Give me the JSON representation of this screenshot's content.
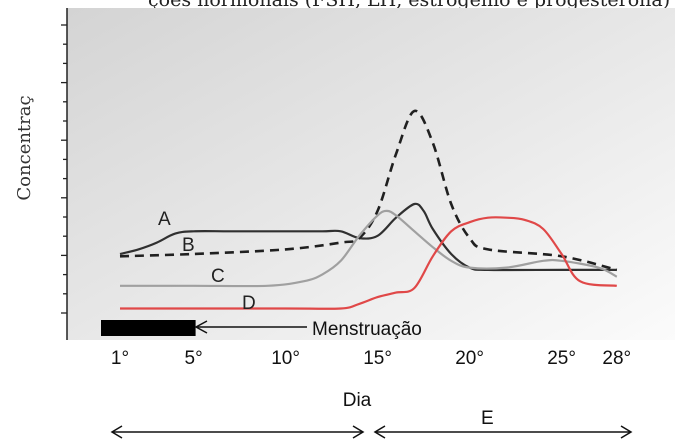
{
  "chart_data": {
    "type": "line",
    "title": "ções hormonais (FSH, LH, estrogênio e progesterona)",
    "ylabel": "Concentraç",
    "xlabel": "Dia",
    "x_ticks": [
      "1°",
      "5°",
      "10°",
      "15°",
      "20°",
      "25°",
      "28°"
    ],
    "x_tick_days": [
      1,
      5,
      10,
      15,
      20,
      25,
      28
    ],
    "xlim": [
      0,
      30
    ],
    "ylim": [
      0,
      10
    ],
    "grid": false,
    "series": [
      {
        "name": "A",
        "color": "#303030",
        "dash": false,
        "points": [
          [
            1,
            2.6
          ],
          [
            2,
            2.8
          ],
          [
            3,
            3.1
          ],
          [
            4,
            3.5
          ],
          [
            5,
            3.6
          ],
          [
            7,
            3.6
          ],
          [
            10,
            3.6
          ],
          [
            12,
            3.6
          ],
          [
            13,
            3.6
          ],
          [
            14,
            3.3
          ],
          [
            15,
            3.4
          ],
          [
            16,
            4.2
          ],
          [
            17,
            4.8
          ],
          [
            17.5,
            4.5
          ],
          [
            18,
            3.7
          ],
          [
            19,
            2.6
          ],
          [
            20,
            2.0
          ],
          [
            21,
            1.9
          ],
          [
            25,
            1.9
          ],
          [
            28,
            1.9
          ]
        ]
      },
      {
        "name": "B",
        "color": "#202020",
        "dash": true,
        "points": [
          [
            1,
            2.5
          ],
          [
            5,
            2.6
          ],
          [
            10,
            2.8
          ],
          [
            13,
            3.1
          ],
          [
            14,
            3.3
          ],
          [
            15,
            4.5
          ],
          [
            16,
            7.0
          ],
          [
            17,
            8.9
          ],
          [
            18,
            7.5
          ],
          [
            19,
            4.8
          ],
          [
            20,
            3.3
          ],
          [
            21,
            2.8
          ],
          [
            25,
            2.5
          ],
          [
            28,
            1.9
          ]
        ]
      },
      {
        "name": "C",
        "color": "#a0a0a0",
        "dash": false,
        "points": [
          [
            1,
            1.2
          ],
          [
            5,
            1.2
          ],
          [
            9,
            1.2
          ],
          [
            11,
            1.4
          ],
          [
            12,
            1.7
          ],
          [
            13,
            2.3
          ],
          [
            14,
            3.4
          ],
          [
            15,
            4.3
          ],
          [
            15.5,
            4.5
          ],
          [
            16,
            4.3
          ],
          [
            17,
            3.6
          ],
          [
            18,
            2.9
          ],
          [
            19,
            2.3
          ],
          [
            20,
            2.0
          ],
          [
            22,
            2.0
          ],
          [
            24,
            2.3
          ],
          [
            25,
            2.3
          ],
          [
            27,
            2.0
          ],
          [
            28,
            1.6
          ]
        ]
      },
      {
        "name": "D",
        "color": "#e04848",
        "dash": false,
        "points": [
          [
            1,
            0.2
          ],
          [
            10,
            0.2
          ],
          [
            13,
            0.2
          ],
          [
            14,
            0.4
          ],
          [
            15,
            0.7
          ],
          [
            16,
            0.9
          ],
          [
            17,
            1.1
          ],
          [
            18,
            2.5
          ],
          [
            19,
            3.6
          ],
          [
            20,
            4.0
          ],
          [
            21,
            4.2
          ],
          [
            22,
            4.2
          ],
          [
            23,
            4.1
          ],
          [
            24,
            3.7
          ],
          [
            25,
            2.6
          ],
          [
            26,
            1.4
          ],
          [
            28,
            1.2
          ]
        ]
      }
    ],
    "annotations": {
      "menstruation_label": "Menstruação",
      "menstruation_days": [
        1,
        5
      ],
      "range_label_right": "E"
    }
  }
}
